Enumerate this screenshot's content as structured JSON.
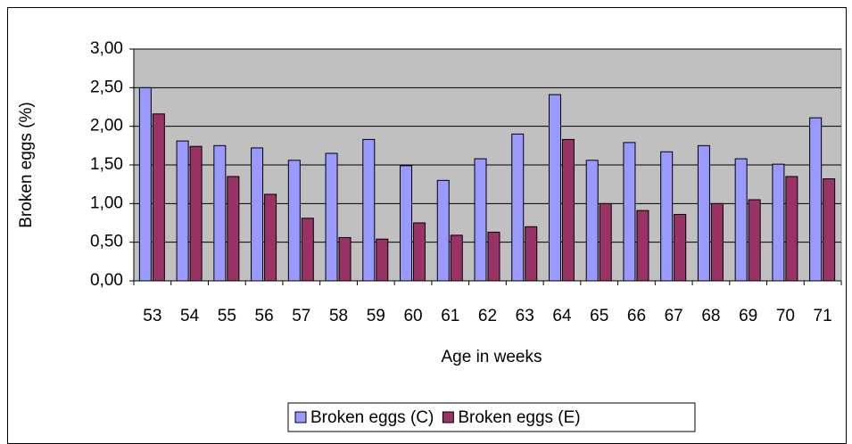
{
  "chart_data": {
    "type": "bar",
    "y_label": "Broken eggs (%)",
    "x_label": "Age in weeks",
    "categories": [
      "53",
      "54",
      "55",
      "56",
      "57",
      "58",
      "59",
      "60",
      "61",
      "62",
      "63",
      "64",
      "65",
      "66",
      "67",
      "68",
      "69",
      "70",
      "71"
    ],
    "series": [
      {
        "name": "Broken eggs (C)",
        "color": "#9999ff",
        "values": [
          2.5,
          1.81,
          1.75,
          1.72,
          1.56,
          1.65,
          1.83,
          1.49,
          1.3,
          1.58,
          1.9,
          2.41,
          1.56,
          1.79,
          1.67,
          1.75,
          1.58,
          1.51,
          2.11
        ]
      },
      {
        "name": "Broken eggs (E)",
        "color": "#993366",
        "values": [
          2.16,
          1.74,
          1.35,
          1.12,
          0.81,
          0.56,
          0.54,
          0.75,
          0.59,
          0.63,
          0.7,
          1.83,
          1.0,
          0.91,
          0.86,
          1.0,
          1.05,
          1.35,
          1.32
        ]
      }
    ],
    "ylim": [
      0,
      3
    ],
    "yticks": [
      {
        "value": 0,
        "label": "0,00"
      },
      {
        "value": 0.5,
        "label": "0,50"
      },
      {
        "value": 1,
        "label": "1,00"
      },
      {
        "value": 1.5,
        "label": "1,50"
      },
      {
        "value": 2,
        "label": "2,00"
      },
      {
        "value": 2.5,
        "label": "2,50"
      },
      {
        "value": 3,
        "label": "3,00"
      }
    ],
    "grid": true,
    "plot_background": "#c0c0c0",
    "legend": "bottom"
  }
}
